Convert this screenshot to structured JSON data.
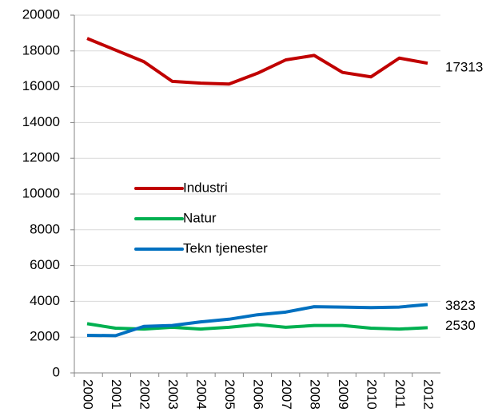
{
  "chart_data": {
    "type": "line",
    "x": [
      "2000",
      "2001",
      "2002",
      "2003",
      "2004",
      "2005",
      "2006",
      "2007",
      "2008",
      "2009",
      "2010",
      "2011",
      "2012"
    ],
    "series": [
      {
        "name": "Industri",
        "color": "#c00000",
        "values": [
          18700,
          18050,
          17400,
          16300,
          16200,
          16150,
          16750,
          17500,
          17750,
          16800,
          16550,
          17600,
          17313
        ]
      },
      {
        "name": "Natur",
        "color": "#00b050",
        "values": [
          2750,
          2500,
          2450,
          2550,
          2450,
          2550,
          2700,
          2550,
          2650,
          2650,
          2500,
          2450,
          2530
        ]
      },
      {
        "name": "Tekn tjenester",
        "color": "#0070c0",
        "values": [
          2100,
          2080,
          2600,
          2650,
          2850,
          3000,
          3250,
          3400,
          3700,
          3680,
          3650,
          3680,
          3823
        ]
      }
    ],
    "ylim": [
      0,
      20000
    ],
    "yticks": [
      0,
      2000,
      4000,
      6000,
      8000,
      10000,
      12000,
      14000,
      16000,
      18000,
      20000
    ],
    "grid": true
  }
}
